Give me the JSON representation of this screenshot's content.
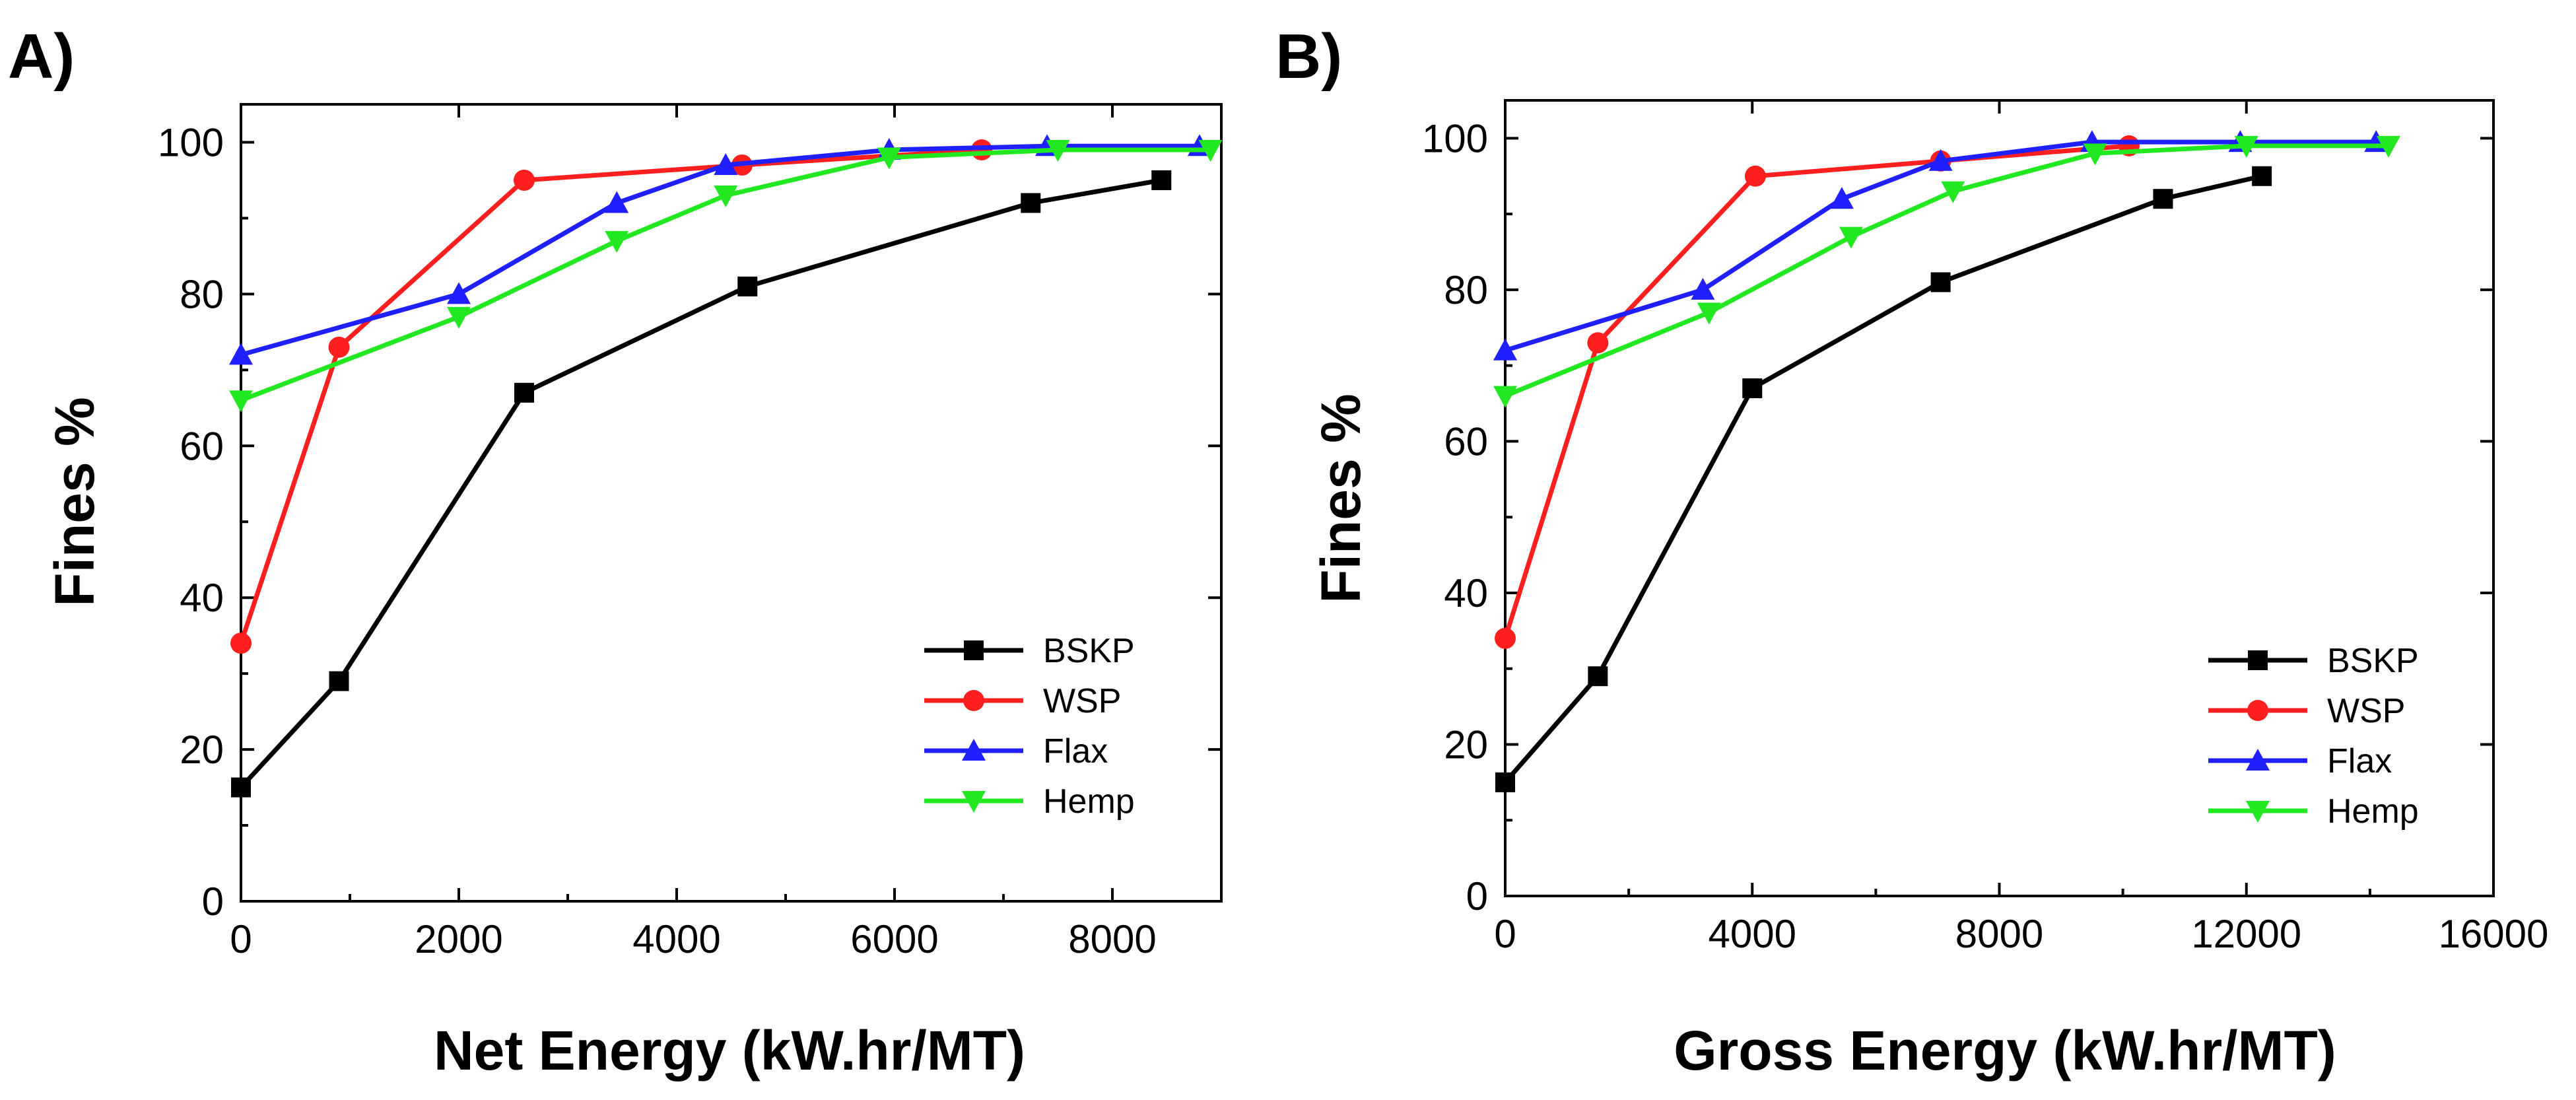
{
  "colors": {
    "BSKP": "#000000",
    "WSP": "#ff1f1f",
    "Flax": "#1f1fff",
    "Hemp": "#22e822"
  },
  "chart_data": [
    {
      "panel_label": "A)",
      "type": "line",
      "xlabel": "Net Energy (kW.hr/MT)",
      "ylabel": "Fines %",
      "xlim": [
        0,
        9000
      ],
      "ylim": [
        0,
        105
      ],
      "x_ticks": [
        0,
        2000,
        4000,
        6000,
        8000
      ],
      "y_ticks": [
        0,
        20,
        40,
        60,
        80,
        100
      ],
      "x_tick_labels": [
        "0",
        "2000",
        "4000",
        "6000",
        "8000"
      ],
      "y_tick_labels": [
        "0",
        "20",
        "40",
        "60",
        "80",
        "100"
      ],
      "legend_position": "bottom-right",
      "series": [
        {
          "name": "BSKP",
          "marker": "square",
          "x": [
            0,
            900,
            2600,
            4650,
            7250,
            8450
          ],
          "y": [
            15,
            29,
            67,
            81,
            92,
            95
          ]
        },
        {
          "name": "WSP",
          "marker": "circle",
          "x": [
            0,
            900,
            2600,
            4600,
            6800
          ],
          "y": [
            34,
            73,
            95,
            97,
            99
          ]
        },
        {
          "name": "Flax",
          "marker": "triangle-up",
          "x": [
            0,
            2000,
            3450,
            4450,
            5950,
            7400,
            8800
          ],
          "y": [
            72,
            80,
            92,
            97,
            99,
            99.5,
            99.5
          ]
        },
        {
          "name": "Hemp",
          "marker": "triangle-down",
          "x": [
            0,
            2000,
            3450,
            4450,
            5950,
            7500,
            8900
          ],
          "y": [
            66,
            77,
            87,
            93,
            98,
            99,
            99
          ]
        }
      ]
    },
    {
      "panel_label": "B)",
      "type": "line",
      "xlabel": "Gross Energy (kW.hr/MT)",
      "ylabel": "Fines %",
      "xlim": [
        0,
        16000
      ],
      "ylim": [
        0,
        105
      ],
      "x_ticks": [
        0,
        4000,
        8000,
        12000,
        16000
      ],
      "y_ticks": [
        0,
        20,
        40,
        60,
        80,
        100
      ],
      "x_tick_labels": [
        "0",
        "4000",
        "8000",
        "12000",
        "16000"
      ],
      "y_tick_labels": [
        "0",
        "20",
        "40",
        "60",
        "80",
        "100"
      ],
      "legend_position": "bottom-right",
      "series": [
        {
          "name": "BSKP",
          "marker": "square",
          "x": [
            0,
            1500,
            4000,
            7050,
            10650,
            12250
          ],
          "y": [
            15,
            29,
            67,
            81,
            92,
            95
          ]
        },
        {
          "name": "WSP",
          "marker": "circle",
          "x": [
            0,
            1500,
            4050,
            7050,
            10100
          ],
          "y": [
            34,
            73,
            95,
            97,
            99
          ]
        },
        {
          "name": "Flax",
          "marker": "triangle-up",
          "x": [
            0,
            3200,
            5450,
            7050,
            9500,
            11900,
            14100
          ],
          "y": [
            72,
            80,
            92,
            97,
            99.5,
            99.5,
            99.5
          ]
        },
        {
          "name": "Hemp",
          "marker": "triangle-down",
          "x": [
            0,
            3300,
            5600,
            7250,
            9550,
            12000,
            14300
          ],
          "y": [
            66,
            77,
            87,
            93,
            98,
            99,
            99
          ]
        }
      ]
    }
  ]
}
